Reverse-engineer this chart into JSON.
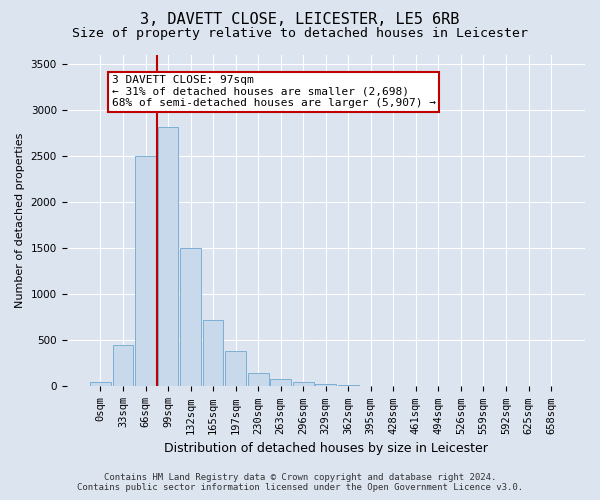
{
  "title": "3, DAVETT CLOSE, LEICESTER, LE5 6RB",
  "subtitle": "Size of property relative to detached houses in Leicester",
  "xlabel": "Distribution of detached houses by size in Leicester",
  "ylabel": "Number of detached properties",
  "categories": [
    "0sqm",
    "33sqm",
    "66sqm",
    "99sqm",
    "132sqm",
    "165sqm",
    "197sqm",
    "230sqm",
    "263sqm",
    "296sqm",
    "329sqm",
    "362sqm",
    "395sqm",
    "428sqm",
    "461sqm",
    "494sqm",
    "526sqm",
    "559sqm",
    "592sqm",
    "625sqm",
    "658sqm"
  ],
  "values": [
    50,
    450,
    2500,
    2820,
    1500,
    720,
    380,
    150,
    80,
    50,
    25,
    15,
    8,
    2,
    0,
    0,
    0,
    0,
    0,
    0,
    0
  ],
  "bar_color": "#c8d9ec",
  "bar_edge_color": "#7bafd4",
  "property_line_color": "#c00000",
  "annotation_line1": "3 DAVETT CLOSE: 97sqm",
  "annotation_line2": "← 31% of detached houses are smaller (2,698)",
  "annotation_line3": "68% of semi-detached houses are larger (5,907) →",
  "annotation_box_facecolor": "#ffffff",
  "annotation_box_edgecolor": "#c00000",
  "ylim": [
    0,
    3600
  ],
  "yticks": [
    0,
    500,
    1000,
    1500,
    2000,
    2500,
    3000,
    3500
  ],
  "bg_color": "#dce4f0",
  "plot_bg_color": "#dce4f0",
  "grid_color": "#ffffff",
  "title_fontsize": 11,
  "subtitle_fontsize": 9.5,
  "xlabel_fontsize": 9,
  "ylabel_fontsize": 8,
  "tick_fontsize": 7.5,
  "annotation_fontsize": 8,
  "footer_fontsize": 6.5,
  "footer_line1": "Contains HM Land Registry data © Crown copyright and database right 2024.",
  "footer_line2": "Contains public sector information licensed under the Open Government Licence v3.0."
}
